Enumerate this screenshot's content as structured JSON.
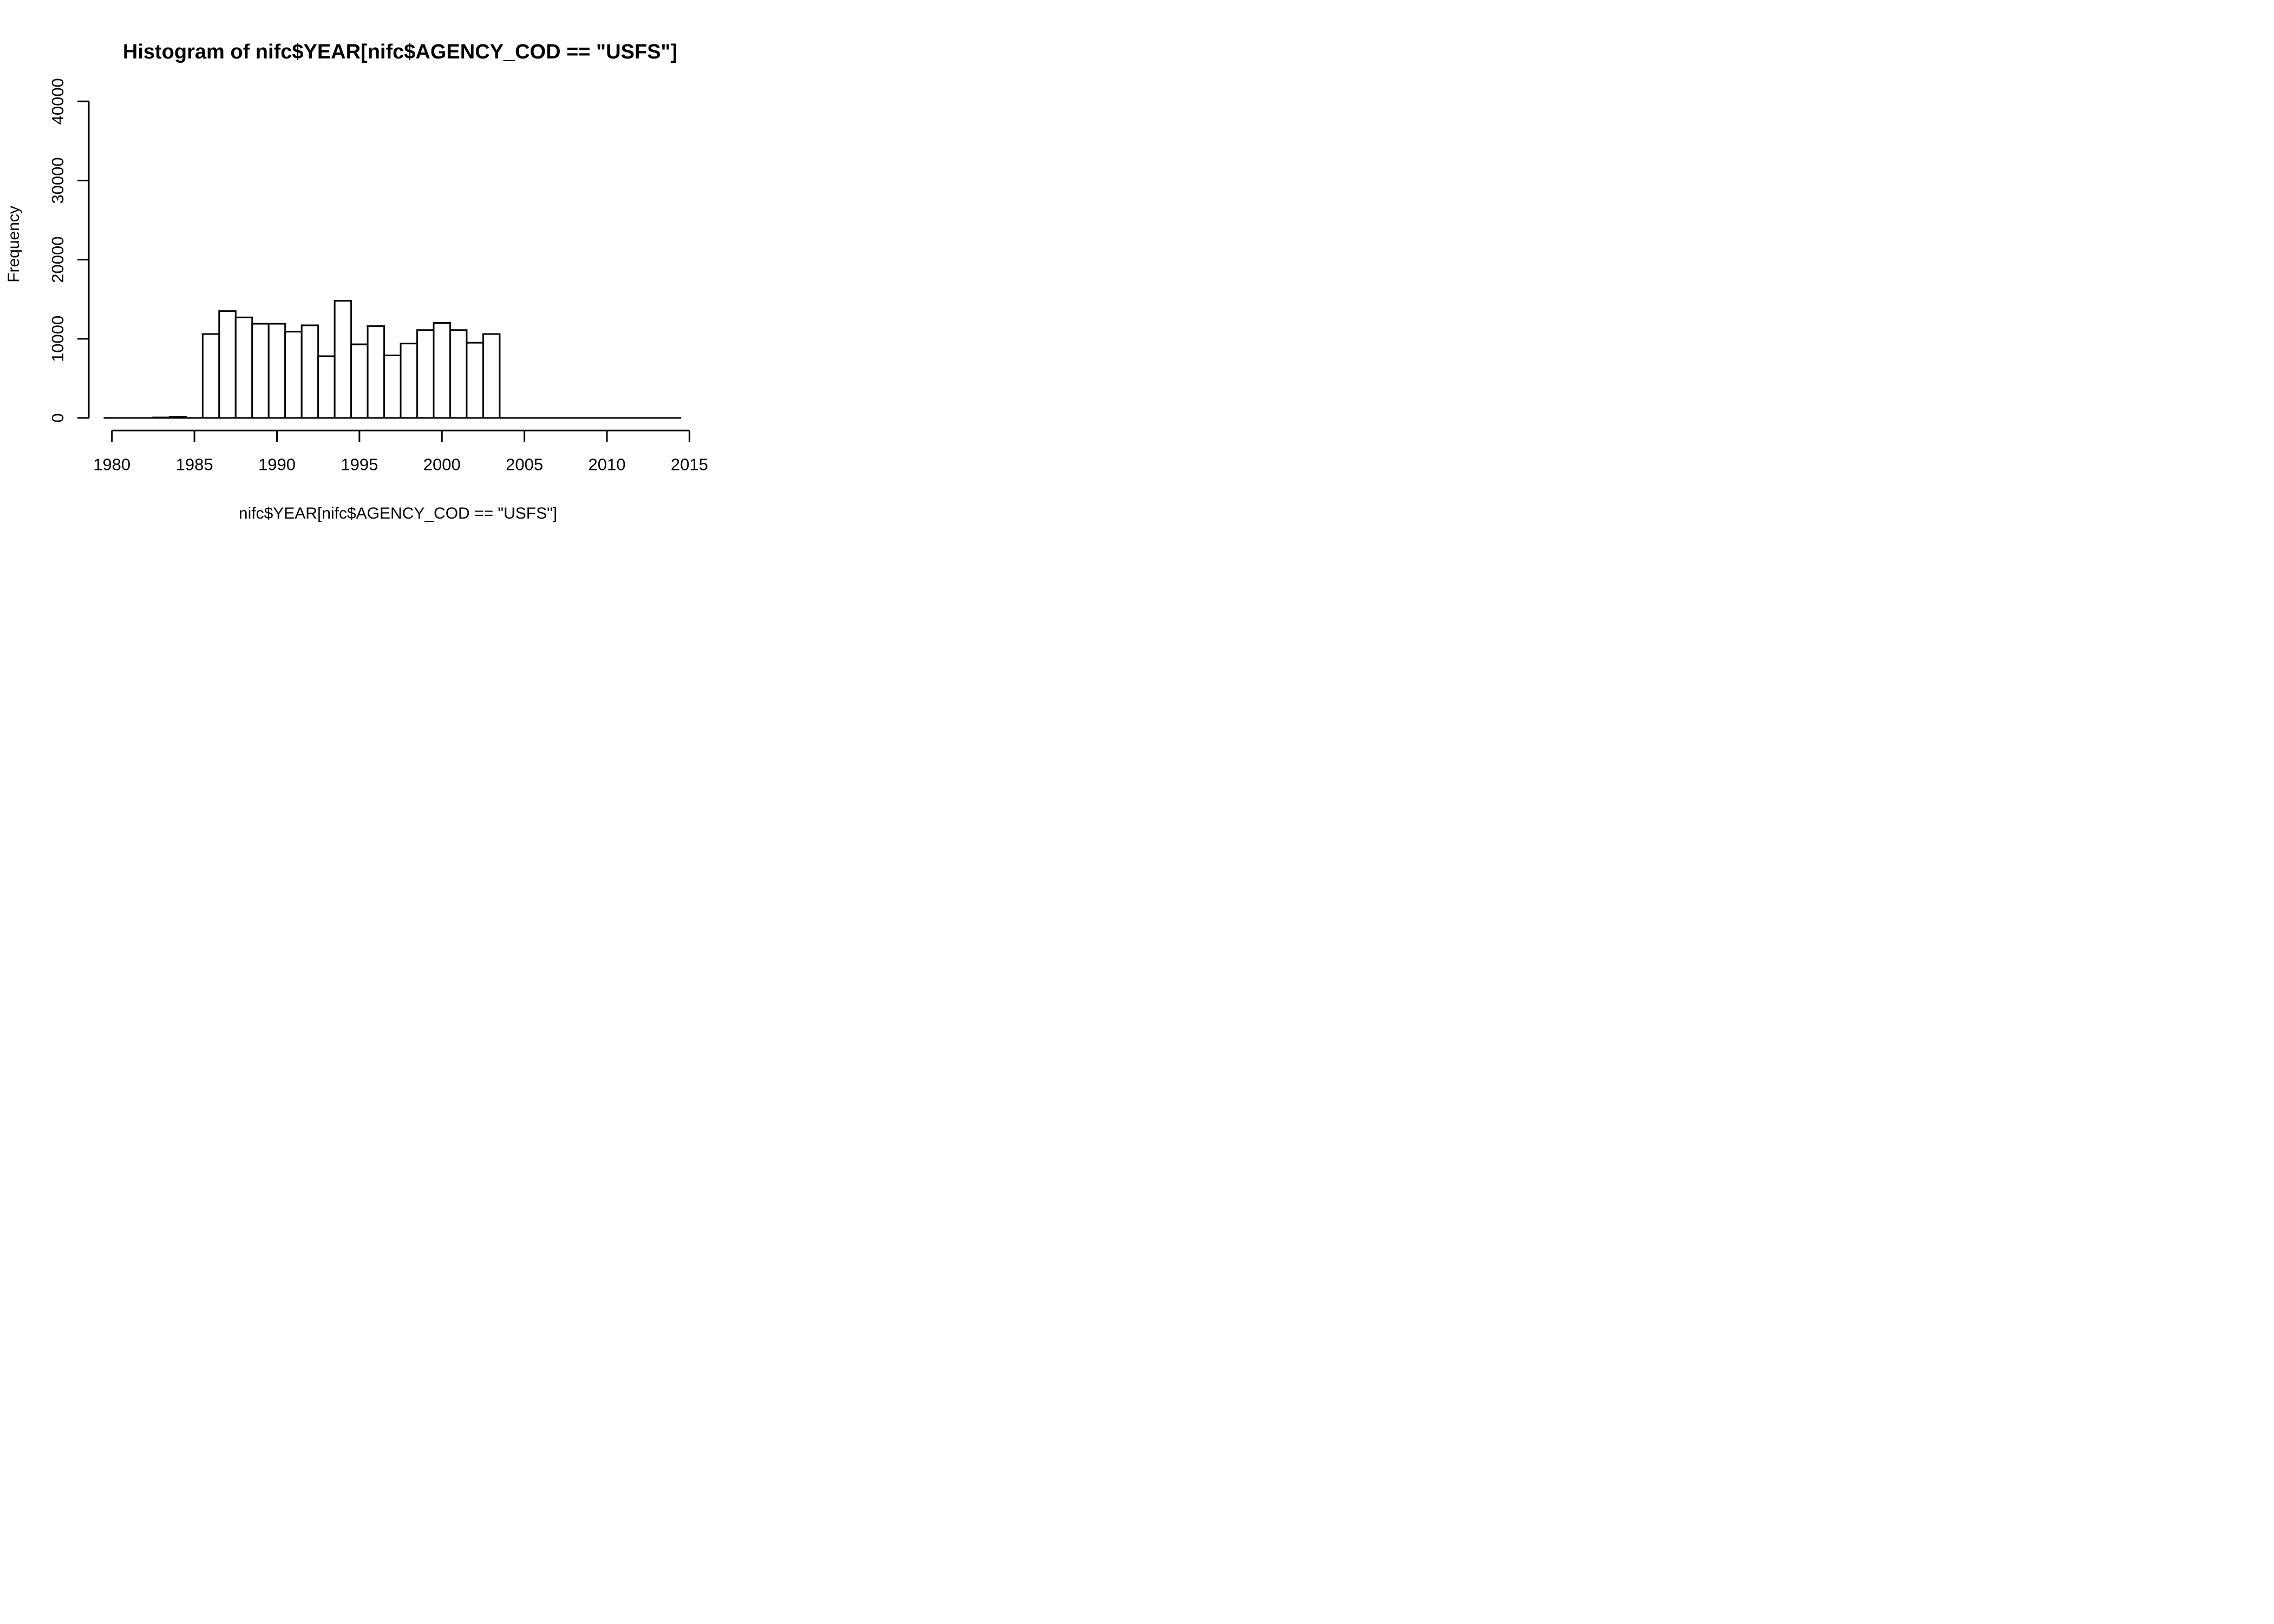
{
  "chart_data": {
    "type": "bar",
    "subtype": "histogram",
    "title": "Histogram of nifc$YEAR[nifc$AGENCY_COD == \"USFS\"]",
    "xlabel": "nifc$YEAR[nifc$AGENCY_COD == \"USFS\"]",
    "ylabel": "Frequency",
    "bin_width": 1,
    "bin_centers": [
      1980,
      1981,
      1982,
      1983,
      1984,
      1985,
      1986,
      1987,
      1988,
      1989,
      1990,
      1991,
      1992,
      1993,
      1994,
      1995,
      1996,
      1997,
      1998,
      1999,
      2000,
      2001,
      2002,
      2003,
      2004,
      2005,
      2006,
      2007,
      2008,
      2009,
      2010,
      2011,
      2012,
      2013,
      2014
    ],
    "values": [
      0,
      0,
      0,
      60,
      140,
      0,
      10600,
      13500,
      12700,
      11900,
      11900,
      10900,
      11700,
      7800,
      14800,
      9300,
      11600,
      7900,
      9400,
      11100,
      12000,
      11100,
      9500,
      10600,
      0,
      0,
      0,
      0,
      0,
      0,
      0,
      0,
      0,
      0,
      0
    ],
    "x_ticks": [
      1980,
      1985,
      1990,
      1995,
      2000,
      2005,
      2010,
      2015
    ],
    "y_ticks": [
      0,
      10000,
      20000,
      30000,
      40000
    ],
    "xlim": [
      1979.5,
      2015
    ],
    "ylim": [
      0,
      40000
    ],
    "baseline_extent": [
      1979.5,
      2014.5
    ],
    "grid": "off",
    "legend": "none",
    "bar_fill": "#ffffff",
    "bar_stroke": "#000000",
    "axis_color": "#000000",
    "background_color": "#ffffff"
  }
}
